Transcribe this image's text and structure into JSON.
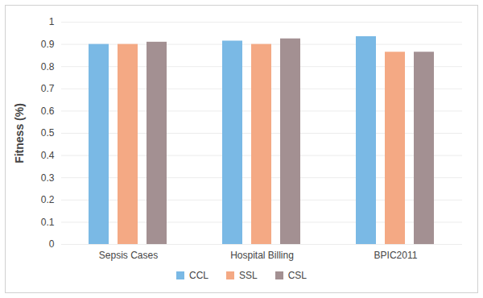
{
  "chart_data": {
    "type": "bar",
    "categories": [
      "Sepsis Cases",
      "Hospital Billing",
      "BPIC2011"
    ],
    "series": [
      {
        "name": "CCL",
        "color": "#7ab9e5",
        "values": [
          0.9,
          0.915,
          0.935
        ]
      },
      {
        "name": "SSL",
        "color": "#f4a984",
        "values": [
          0.9,
          0.9,
          0.865
        ]
      },
      {
        "name": "CSL",
        "color": "#a39092",
        "values": [
          0.91,
          0.925,
          0.865
        ]
      }
    ],
    "ylabel": "Fitness (%)",
    "ylim": [
      0,
      1
    ],
    "yticks": [
      0,
      0.1,
      0.2,
      0.3,
      0.4,
      0.5,
      0.6,
      0.7,
      0.8,
      0.9,
      1
    ],
    "grid": true,
    "legend": "bottom"
  }
}
